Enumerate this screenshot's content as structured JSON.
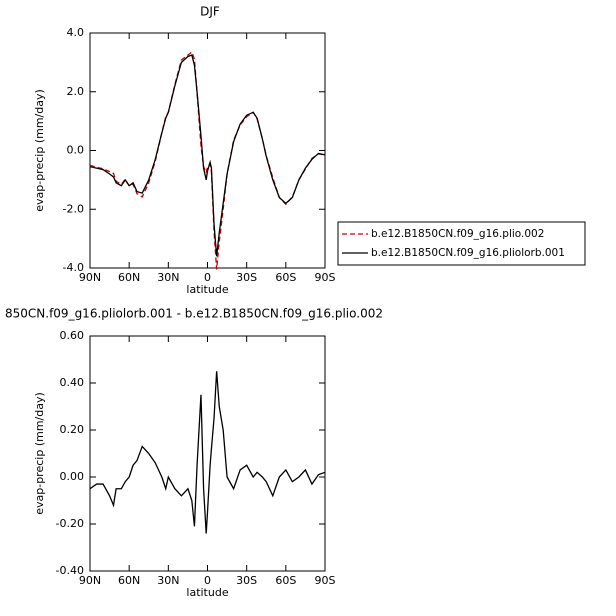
{
  "chart_data": [
    {
      "type": "line",
      "title": "DJF",
      "xlabel": "latitude",
      "ylabel": "evap-precip (mm/day)",
      "x": [
        90,
        85,
        80,
        75,
        72,
        70,
        66,
        63,
        60,
        57,
        54,
        50,
        45,
        40,
        35,
        32,
        30,
        25,
        20,
        15,
        12,
        10,
        8,
        5,
        3,
        1,
        0,
        -2,
        -3,
        -5,
        -7,
        -9,
        -12,
        -15,
        -20,
        -25,
        -30,
        -35,
        -38,
        -42,
        -45,
        -50,
        -55,
        -60,
        -65,
        -70,
        -75,
        -80,
        -85,
        -90
      ],
      "series": [
        {
          "name": "b.e12.B1850CN.f09_g16.plio.002",
          "color": "#cc0000",
          "dash": true,
          "values": [
            -0.5,
            -0.57,
            -0.62,
            -0.72,
            -0.78,
            -1.05,
            -1.15,
            -0.98,
            -1.2,
            -1.15,
            -1.47,
            -1.58,
            -1.1,
            -0.36,
            0.6,
            1.15,
            1.3,
            2.25,
            3.08,
            3.25,
            3.35,
            3.11,
            1.95,
            0.15,
            -0.55,
            -0.76,
            -0.55,
            -0.45,
            -0.72,
            -2.75,
            -4.05,
            -3.1,
            -2.0,
            -0.8,
            0.35,
            0.87,
            1.15,
            1.3,
            1.08,
            0.4,
            -0.18,
            -0.92,
            -1.6,
            -1.83,
            -1.58,
            -1.0,
            -0.63,
            -0.27,
            -0.11,
            -0.17
          ]
        },
        {
          "name": "b.e12.B1850CN.f09_g16.pliolorb.001",
          "color": "#000000",
          "dash": false,
          "values": [
            -0.55,
            -0.6,
            -0.65,
            -0.8,
            -0.9,
            -1.1,
            -1.2,
            -1.0,
            -1.2,
            -1.1,
            -1.4,
            -1.45,
            -1.0,
            -0.3,
            0.6,
            1.1,
            1.3,
            2.2,
            3.0,
            3.2,
            3.25,
            2.9,
            2.0,
            0.5,
            -0.6,
            -1.0,
            -0.7,
            -0.4,
            -0.6,
            -2.5,
            -3.6,
            -2.8,
            -1.8,
            -0.8,
            0.3,
            0.9,
            1.2,
            1.3,
            1.1,
            0.4,
            -0.2,
            -1.0,
            -1.6,
            -1.8,
            -1.6,
            -1.0,
            -0.6,
            -0.3,
            -0.1,
            -0.15
          ]
        }
      ],
      "xlim": [
        90,
        -90
      ],
      "xticks": [
        {
          "value": 90,
          "label": "90N"
        },
        {
          "value": 60,
          "label": "60N"
        },
        {
          "value": 30,
          "label": "30N"
        },
        0,
        {
          "value": -30,
          "label": "30S"
        },
        {
          "value": -60,
          "label": "60S"
        },
        {
          "value": -90,
          "label": "90S"
        }
      ],
      "ylim": [
        -4,
        4
      ],
      "yticks": [
        {
          "value": -4,
          "label": "-4.0"
        },
        {
          "value": -2,
          "label": "-2.0"
        },
        {
          "value": 0,
          "label": "0.0"
        },
        {
          "value": 2,
          "label": "2.0"
        },
        {
          "value": 4,
          "label": "4.0"
        }
      ],
      "legend": "outside-right"
    },
    {
      "type": "line",
      "title": "850CN.f09_g16.pliolorb.001 - b.e12.B1850CN.f09_g16.plio.002",
      "xlabel": "latitude",
      "ylabel": "evap-precip (mm/day)",
      "x": [
        90,
        85,
        80,
        75,
        72,
        70,
        66,
        63,
        60,
        57,
        54,
        50,
        45,
        40,
        35,
        32,
        30,
        25,
        20,
        15,
        12,
        10,
        8,
        5,
        3,
        1,
        0,
        -2,
        -3,
        -5,
        -7,
        -9,
        -12,
        -15,
        -20,
        -25,
        -30,
        -35,
        -38,
        -42,
        -45,
        -50,
        -55,
        -60,
        -65,
        -70,
        -75,
        -80,
        -85,
        -90
      ],
      "series": [
        {
          "color": "#000000",
          "dash": false,
          "values": [
            -0.05,
            -0.03,
            -0.03,
            -0.08,
            -0.12,
            -0.05,
            -0.05,
            -0.02,
            0.0,
            0.05,
            0.07,
            0.13,
            0.1,
            0.06,
            0.0,
            -0.05,
            0.0,
            -0.05,
            -0.08,
            -0.05,
            -0.1,
            -0.21,
            0.05,
            0.35,
            -0.05,
            -0.24,
            -0.15,
            0.05,
            0.12,
            0.25,
            0.45,
            0.3,
            0.2,
            0.0,
            -0.05,
            0.03,
            0.05,
            0.0,
            0.02,
            0.0,
            -0.02,
            -0.08,
            0.0,
            0.03,
            -0.02,
            0.0,
            0.03,
            -0.03,
            0.01,
            0.02
          ]
        }
      ],
      "xlim": [
        90,
        -90
      ],
      "xticks": [
        {
          "value": 90,
          "label": "90N"
        },
        {
          "value": 60,
          "label": "60N"
        },
        {
          "value": 30,
          "label": "30N"
        },
        0,
        {
          "value": -30,
          "label": "30S"
        },
        {
          "value": -60,
          "label": "60S"
        },
        {
          "value": -90,
          "label": "90S"
        }
      ],
      "ylim": [
        -0.4,
        0.6
      ],
      "yticks": [
        {
          "value": -0.4,
          "label": "-0.40"
        },
        {
          "value": -0.2,
          "label": "-0.20"
        },
        {
          "value": 0,
          "label": "0.00"
        },
        {
          "value": 0.2,
          "label": "0.20"
        },
        {
          "value": 0.4,
          "label": "0.40"
        },
        {
          "value": 0.6,
          "label": "0.60"
        }
      ]
    }
  ]
}
